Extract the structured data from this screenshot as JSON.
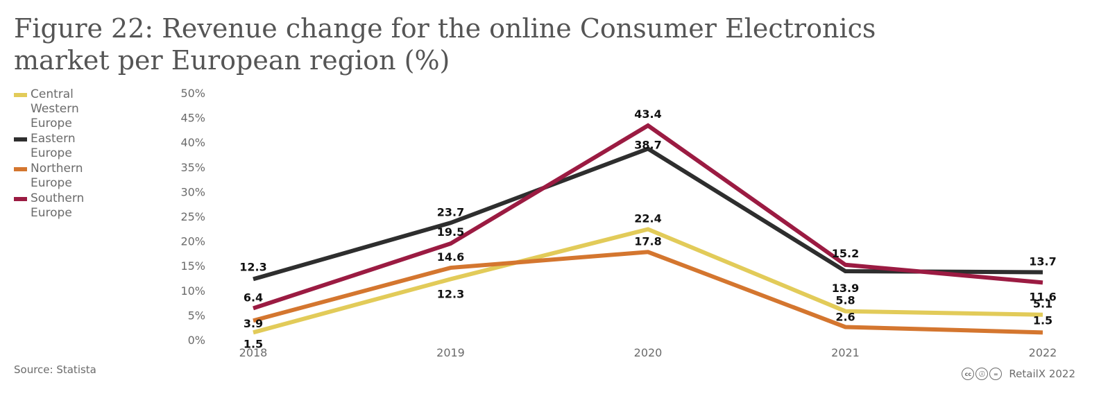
{
  "title": "Figure 22: Revenue change for the online Consumer Electronics market per European region (%)",
  "source": "Source: Statista",
  "credit": "RetailX 2022",
  "license_icons": [
    {
      "name": "cc-icon",
      "glyph": "cc"
    },
    {
      "name": "attribution-icon",
      "glyph": "ⓘ"
    },
    {
      "name": "no-derivatives-icon",
      "glyph": "="
    }
  ],
  "colors": {
    "central_western": "#e2cb59",
    "eastern": "#2e2e2e",
    "northern": "#d4762f",
    "southern": "#9b1b42"
  },
  "chart_data": {
    "type": "line",
    "title": "Figure 22: Revenue change for the online Consumer Electronics market per European region (%)",
    "categories": [
      "2018",
      "2019",
      "2020",
      "2021",
      "2022"
    ],
    "ylim": [
      0,
      50
    ],
    "yticks": [
      "0%",
      "5%",
      "10%",
      "15%",
      "20%",
      "25%",
      "30%",
      "35%",
      "40%",
      "45%",
      "50%"
    ],
    "grid": false,
    "legend_position": "left",
    "series": [
      {
        "name": "Central Western Europe",
        "color": "#e2cb59",
        "values": [
          1.5,
          12.3,
          22.4,
          5.8,
          5.1
        ],
        "labels": [
          "1.5",
          "12.3",
          "22.4",
          "5.8",
          "5.1"
        ]
      },
      {
        "name": "Eastern Europe",
        "color": "#2e2e2e",
        "values": [
          12.3,
          23.7,
          38.7,
          13.9,
          13.7
        ],
        "labels": [
          "12.3",
          "23.7",
          "38.7",
          "13.9",
          "13.7"
        ]
      },
      {
        "name": "Northern Europe",
        "color": "#d4762f",
        "values": [
          3.9,
          14.6,
          17.8,
          2.6,
          1.5
        ],
        "labels": [
          "3.9",
          "14.6",
          "17.8",
          "2.6",
          "1.5"
        ]
      },
      {
        "name": "Southern Europe",
        "color": "#9b1b42",
        "values": [
          6.4,
          19.5,
          43.4,
          15.2,
          11.6
        ],
        "labels": [
          "6.4",
          "19.5",
          "43.4",
          "15.2",
          "11.6"
        ]
      }
    ]
  }
}
